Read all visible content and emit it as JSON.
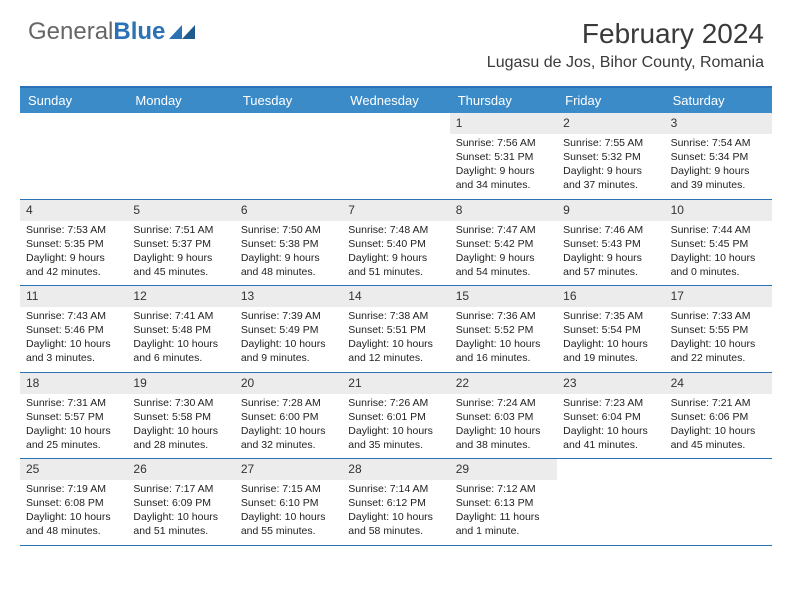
{
  "logo": {
    "part1": "General",
    "part2": "Blue"
  },
  "title": "February 2024",
  "location": "Lugasu de Jos, Bihor County, Romania",
  "colors": {
    "header_bar": "#3b8bc9",
    "accent_border": "#2a72b5",
    "daynum_bg": "#ececec",
    "text": "#222222",
    "title_text": "#3a3a3a"
  },
  "day_names": [
    "Sunday",
    "Monday",
    "Tuesday",
    "Wednesday",
    "Thursday",
    "Friday",
    "Saturday"
  ],
  "weeks": [
    [
      {
        "empty": true
      },
      {
        "empty": true
      },
      {
        "empty": true
      },
      {
        "empty": true
      },
      {
        "day": "1",
        "sunrise": "Sunrise: 7:56 AM",
        "sunset": "Sunset: 5:31 PM",
        "dl1": "Daylight: 9 hours",
        "dl2": "and 34 minutes."
      },
      {
        "day": "2",
        "sunrise": "Sunrise: 7:55 AM",
        "sunset": "Sunset: 5:32 PM",
        "dl1": "Daylight: 9 hours",
        "dl2": "and 37 minutes."
      },
      {
        "day": "3",
        "sunrise": "Sunrise: 7:54 AM",
        "sunset": "Sunset: 5:34 PM",
        "dl1": "Daylight: 9 hours",
        "dl2": "and 39 minutes."
      }
    ],
    [
      {
        "day": "4",
        "sunrise": "Sunrise: 7:53 AM",
        "sunset": "Sunset: 5:35 PM",
        "dl1": "Daylight: 9 hours",
        "dl2": "and 42 minutes."
      },
      {
        "day": "5",
        "sunrise": "Sunrise: 7:51 AM",
        "sunset": "Sunset: 5:37 PM",
        "dl1": "Daylight: 9 hours",
        "dl2": "and 45 minutes."
      },
      {
        "day": "6",
        "sunrise": "Sunrise: 7:50 AM",
        "sunset": "Sunset: 5:38 PM",
        "dl1": "Daylight: 9 hours",
        "dl2": "and 48 minutes."
      },
      {
        "day": "7",
        "sunrise": "Sunrise: 7:48 AM",
        "sunset": "Sunset: 5:40 PM",
        "dl1": "Daylight: 9 hours",
        "dl2": "and 51 minutes."
      },
      {
        "day": "8",
        "sunrise": "Sunrise: 7:47 AM",
        "sunset": "Sunset: 5:42 PM",
        "dl1": "Daylight: 9 hours",
        "dl2": "and 54 minutes."
      },
      {
        "day": "9",
        "sunrise": "Sunrise: 7:46 AM",
        "sunset": "Sunset: 5:43 PM",
        "dl1": "Daylight: 9 hours",
        "dl2": "and 57 minutes."
      },
      {
        "day": "10",
        "sunrise": "Sunrise: 7:44 AM",
        "sunset": "Sunset: 5:45 PM",
        "dl1": "Daylight: 10 hours",
        "dl2": "and 0 minutes."
      }
    ],
    [
      {
        "day": "11",
        "sunrise": "Sunrise: 7:43 AM",
        "sunset": "Sunset: 5:46 PM",
        "dl1": "Daylight: 10 hours",
        "dl2": "and 3 minutes."
      },
      {
        "day": "12",
        "sunrise": "Sunrise: 7:41 AM",
        "sunset": "Sunset: 5:48 PM",
        "dl1": "Daylight: 10 hours",
        "dl2": "and 6 minutes."
      },
      {
        "day": "13",
        "sunrise": "Sunrise: 7:39 AM",
        "sunset": "Sunset: 5:49 PM",
        "dl1": "Daylight: 10 hours",
        "dl2": "and 9 minutes."
      },
      {
        "day": "14",
        "sunrise": "Sunrise: 7:38 AM",
        "sunset": "Sunset: 5:51 PM",
        "dl1": "Daylight: 10 hours",
        "dl2": "and 12 minutes."
      },
      {
        "day": "15",
        "sunrise": "Sunrise: 7:36 AM",
        "sunset": "Sunset: 5:52 PM",
        "dl1": "Daylight: 10 hours",
        "dl2": "and 16 minutes."
      },
      {
        "day": "16",
        "sunrise": "Sunrise: 7:35 AM",
        "sunset": "Sunset: 5:54 PM",
        "dl1": "Daylight: 10 hours",
        "dl2": "and 19 minutes."
      },
      {
        "day": "17",
        "sunrise": "Sunrise: 7:33 AM",
        "sunset": "Sunset: 5:55 PM",
        "dl1": "Daylight: 10 hours",
        "dl2": "and 22 minutes."
      }
    ],
    [
      {
        "day": "18",
        "sunrise": "Sunrise: 7:31 AM",
        "sunset": "Sunset: 5:57 PM",
        "dl1": "Daylight: 10 hours",
        "dl2": "and 25 minutes."
      },
      {
        "day": "19",
        "sunrise": "Sunrise: 7:30 AM",
        "sunset": "Sunset: 5:58 PM",
        "dl1": "Daylight: 10 hours",
        "dl2": "and 28 minutes."
      },
      {
        "day": "20",
        "sunrise": "Sunrise: 7:28 AM",
        "sunset": "Sunset: 6:00 PM",
        "dl1": "Daylight: 10 hours",
        "dl2": "and 32 minutes."
      },
      {
        "day": "21",
        "sunrise": "Sunrise: 7:26 AM",
        "sunset": "Sunset: 6:01 PM",
        "dl1": "Daylight: 10 hours",
        "dl2": "and 35 minutes."
      },
      {
        "day": "22",
        "sunrise": "Sunrise: 7:24 AM",
        "sunset": "Sunset: 6:03 PM",
        "dl1": "Daylight: 10 hours",
        "dl2": "and 38 minutes."
      },
      {
        "day": "23",
        "sunrise": "Sunrise: 7:23 AM",
        "sunset": "Sunset: 6:04 PM",
        "dl1": "Daylight: 10 hours",
        "dl2": "and 41 minutes."
      },
      {
        "day": "24",
        "sunrise": "Sunrise: 7:21 AM",
        "sunset": "Sunset: 6:06 PM",
        "dl1": "Daylight: 10 hours",
        "dl2": "and 45 minutes."
      }
    ],
    [
      {
        "day": "25",
        "sunrise": "Sunrise: 7:19 AM",
        "sunset": "Sunset: 6:08 PM",
        "dl1": "Daylight: 10 hours",
        "dl2": "and 48 minutes."
      },
      {
        "day": "26",
        "sunrise": "Sunrise: 7:17 AM",
        "sunset": "Sunset: 6:09 PM",
        "dl1": "Daylight: 10 hours",
        "dl2": "and 51 minutes."
      },
      {
        "day": "27",
        "sunrise": "Sunrise: 7:15 AM",
        "sunset": "Sunset: 6:10 PM",
        "dl1": "Daylight: 10 hours",
        "dl2": "and 55 minutes."
      },
      {
        "day": "28",
        "sunrise": "Sunrise: 7:14 AM",
        "sunset": "Sunset: 6:12 PM",
        "dl1": "Daylight: 10 hours",
        "dl2": "and 58 minutes."
      },
      {
        "day": "29",
        "sunrise": "Sunrise: 7:12 AM",
        "sunset": "Sunset: 6:13 PM",
        "dl1": "Daylight: 11 hours",
        "dl2": "and 1 minute."
      },
      {
        "empty": true
      },
      {
        "empty": true
      }
    ]
  ]
}
